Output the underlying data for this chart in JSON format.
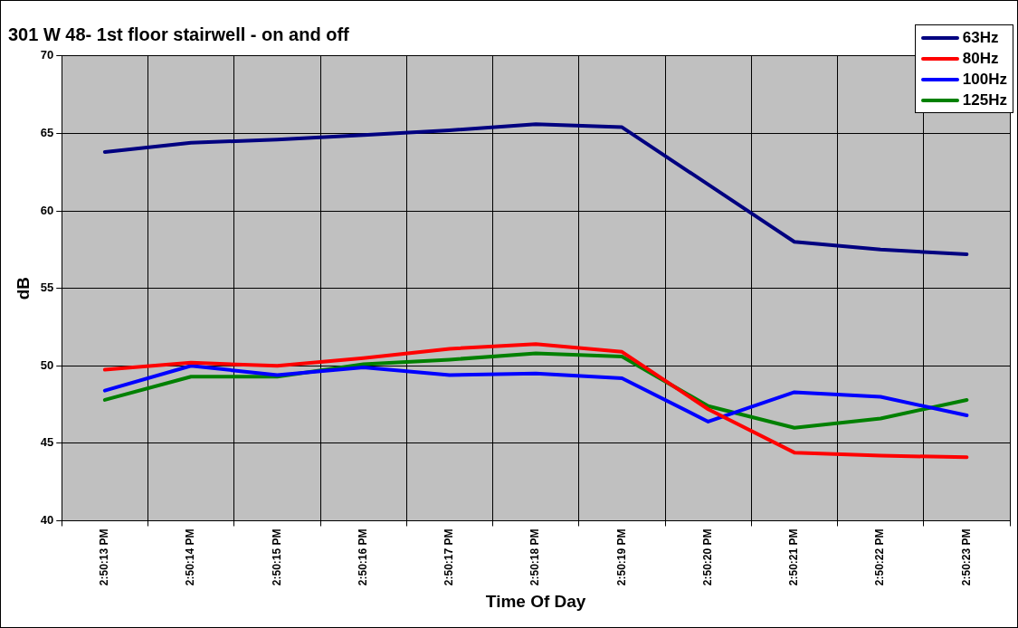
{
  "chart_data": {
    "type": "line",
    "title": "301 W 48- 1st floor stairwell - on and off",
    "xlabel": "Time Of Day",
    "ylabel": "dB",
    "categories": [
      "2:50:13 PM",
      "2:50:14 PM",
      "2:50:15 PM",
      "2:50:16 PM",
      "2:50:17 PM",
      "2:50:18 PM",
      "2:50:19 PM",
      "2:50:20 PM",
      "2:50:21 PM",
      "2:50:22 PM",
      "2:50:23 PM"
    ],
    "series": [
      {
        "name": "63Hz",
        "color": "#000080",
        "values": [
          63.8,
          64.4,
          64.6,
          64.9,
          65.2,
          65.6,
          65.4,
          61.7,
          58.0,
          57.5,
          57.2
        ]
      },
      {
        "name": "80Hz",
        "color": "#ff0000",
        "values": [
          49.75,
          50.2,
          50.0,
          50.5,
          51.1,
          51.4,
          50.9,
          47.2,
          44.4,
          44.2,
          44.1
        ]
      },
      {
        "name": "100Hz",
        "color": "#0000ff",
        "values": [
          48.4,
          50.0,
          49.4,
          49.9,
          49.4,
          49.5,
          49.2,
          46.4,
          48.3,
          48.0,
          46.8
        ]
      },
      {
        "name": "125Hz",
        "color": "#008000",
        "values": [
          47.8,
          49.3,
          49.3,
          50.1,
          50.4,
          50.8,
          50.6,
          47.4,
          46.0,
          46.6,
          47.8
        ]
      }
    ],
    "ylim": [
      40,
      70
    ],
    "yticks": [
      40,
      45,
      50,
      55,
      60,
      65,
      70
    ],
    "grid": true,
    "legend": "top right",
    "marker": "none",
    "line_style": "solid"
  }
}
